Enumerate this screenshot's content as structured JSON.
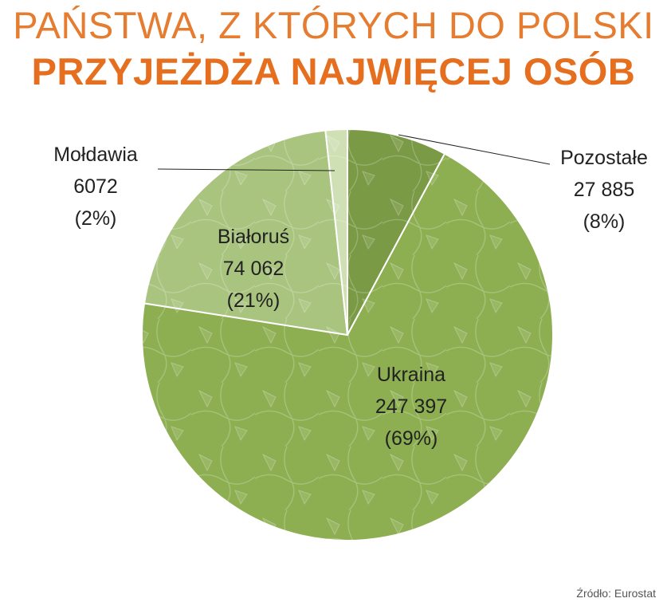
{
  "title": {
    "line1": "PAŃSTWA, Z KTÓRYCH DO POLSKI",
    "line2": "PRZYJEŻDŻA NAJWIĘCEJ OSÓB"
  },
  "source": "Źródło: Eurostat",
  "colors": {
    "title": "#e67c2f",
    "pozostale": "#7a9a45",
    "ukraina": "#8daf52",
    "bialorus": "#a9c47f",
    "moldawia": "#cfe0b5"
  },
  "chart_data": {
    "type": "pie",
    "slices": [
      {
        "label": "Pozostałe",
        "value": 27885,
        "value_text": "27 885",
        "pct_text": "(8%)"
      },
      {
        "label": "Ukraina",
        "value": 247397,
        "value_text": "247 397",
        "pct_text": "(69%)"
      },
      {
        "label": "Białoruś",
        "value": 74062,
        "value_text": "74 062",
        "pct_text": "(21%)"
      },
      {
        "label": "Mołdawia",
        "value": 6072,
        "value_text": "6072",
        "pct_text": "(2%)"
      }
    ]
  }
}
